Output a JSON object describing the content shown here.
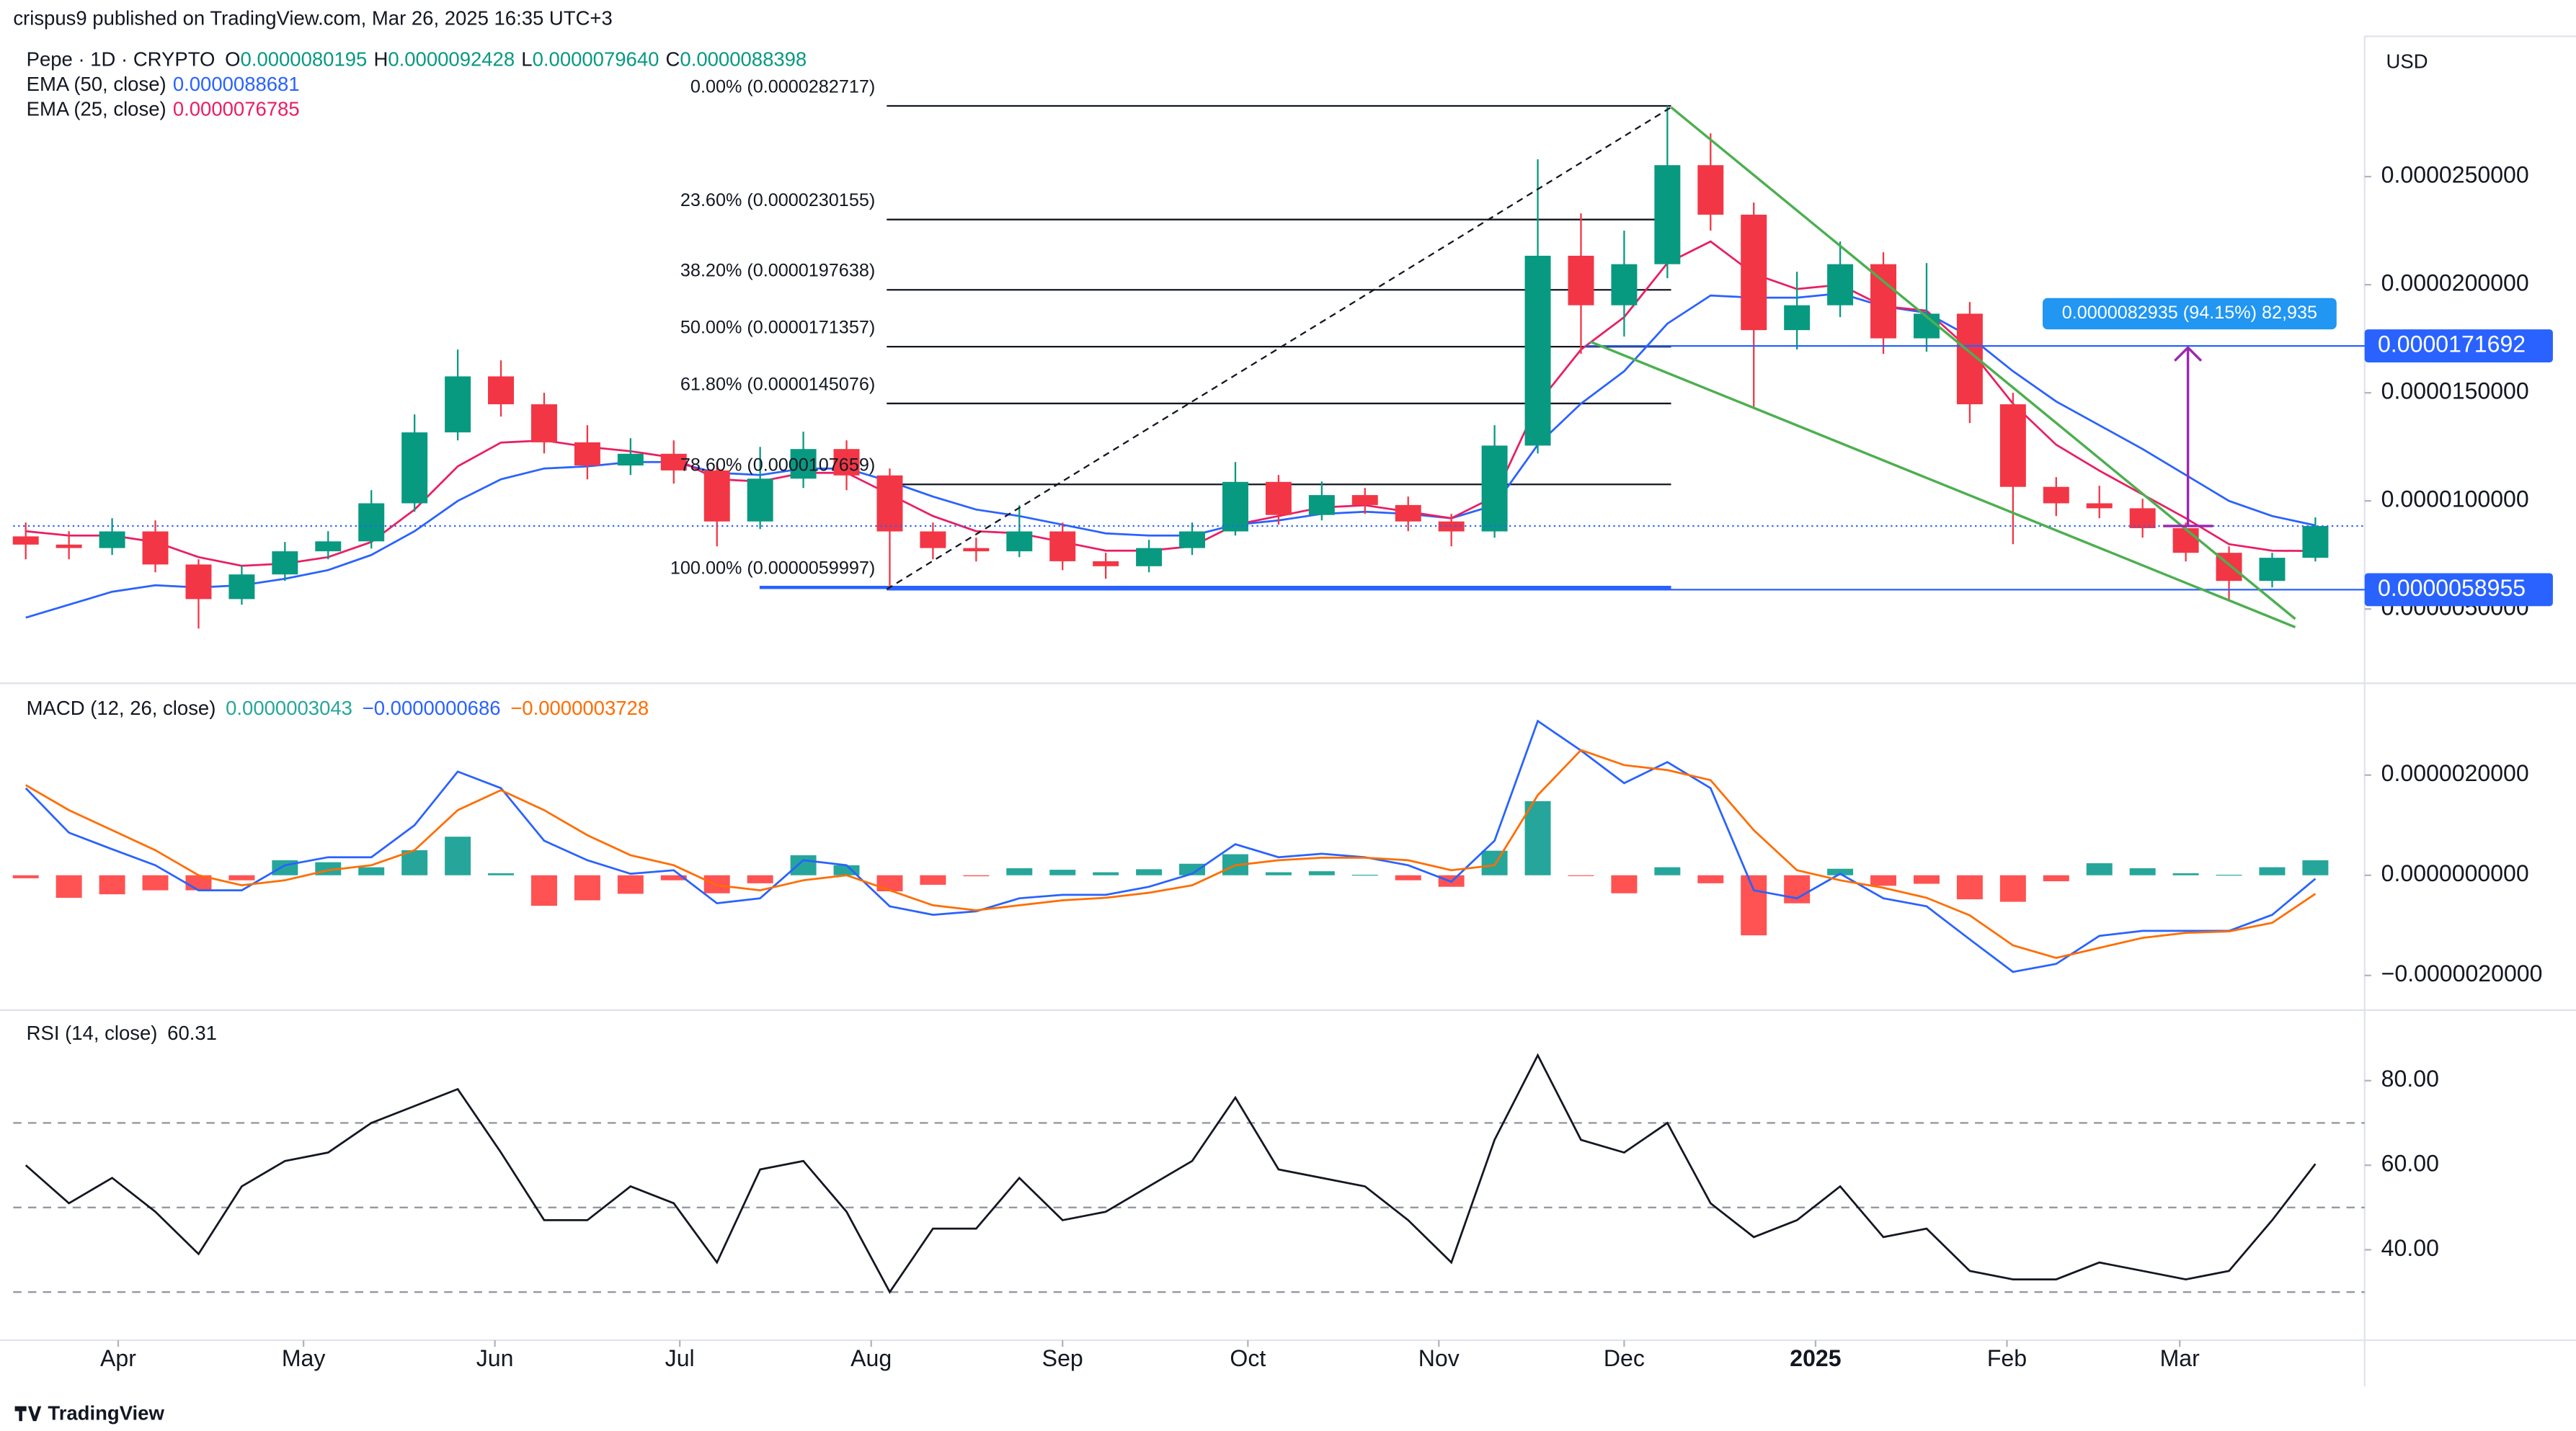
{
  "header": {
    "published": "crispus9 published on TradingView.com, Mar 26, 2025 16:35 UTC+3",
    "symbol": "Pepe · 1D · CRYPTO",
    "ohlc": [
      {
        "label": "O",
        "value": "0.0000080195"
      },
      {
        "label": "H",
        "value": "0.0000092428"
      },
      {
        "label": "L",
        "value": "0.0000079640"
      },
      {
        "label": "C",
        "value": "0.0000088398"
      }
    ],
    "currency": "USD",
    "brand": "TradingView"
  },
  "chart_data": [
    {
      "type": "candlestick",
      "up_color": "#089981",
      "down_color": "#f23645",
      "categories": [
        null,
        null,
        null,
        null,
        null,
        null,
        null,
        null,
        null,
        null,
        null,
        null,
        null,
        null,
        null,
        null,
        null,
        null,
        null,
        null,
        null,
        null,
        null,
        null,
        null,
        null,
        null,
        null,
        null,
        null,
        null,
        null,
        null,
        null,
        null,
        null,
        null,
        null,
        null,
        null,
        null,
        null,
        null,
        null,
        null,
        null,
        null,
        null,
        null,
        null,
        null,
        null,
        null,
        null
      ],
      "open": [
        8.36e-06,
        7.98e-06,
        7.82e-06,
        8.59e-06,
        7.06e-06,
        5.46e-06,
        6.6e-06,
        7.67e-06,
        8.13e-06,
        9.89e-06,
        1.317e-05,
        1.576e-05,
        1.447e-05,
        1.271e-05,
        1.164e-05,
        1.218e-05,
        1.141e-05,
        9.05e-06,
        1.103e-05,
        1.24e-05,
        1.118e-05,
        8.59e-06,
        7.82e-06,
        7.67e-06,
        8.59e-06,
        7.21e-06,
        6.98e-06,
        7.82e-06,
        8.59e-06,
        1.088e-05,
        9.35e-06,
        1.027e-05,
        9.81e-06,
        9.05e-06,
        8.59e-06,
        1.256e-05,
        2.134e-05,
        1.905e-05,
        2.095e-05,
        2.553e-05,
        2.324e-05,
        1.79e-05,
        1.905e-05,
        2.095e-05,
        1.752e-05,
        1.866e-05,
        1.447e-05,
        1.065e-05,
        9.89e-06,
        9.66e-06,
        8.74e-06,
        7.6e-06,
        6.3e-06,
        7.37e-06
      ],
      "high": [
        9e-06,
        8.6e-06,
        9.2e-06,
        9.1e-06,
        7.3e-06,
        7e-06,
        8.1e-06,
        8.6e-06,
        1.05e-05,
        1.4e-05,
        1.7e-05,
        1.65e-05,
        1.5e-05,
        1.35e-05,
        1.29e-05,
        1.28e-05,
        1.18e-05,
        1.25e-05,
        1.32e-05,
        1.28e-05,
        1.15e-05,
        9e-06,
        8.3e-06,
        9.8e-06,
        9e-06,
        7.6e-06,
        8.2e-06,
        9e-06,
        1.18e-05,
        1.12e-05,
        1.09e-05,
        1.06e-05,
        1.02e-05,
        9.4e-06,
        1.35e-05,
        2.58e-05,
        2.33e-05,
        2.25e-05,
        2.827e-05,
        2.7e-05,
        2.38e-05,
        2.06e-05,
        2.2e-05,
        2.15e-05,
        2.1e-05,
        1.92e-05,
        1.5e-05,
        1.11e-05,
        1.07e-05,
        1.01e-05,
        9e-06,
        7.9e-06,
        7.6e-06,
        9.24e-06
      ],
      "low": [
        7.3e-06,
        7.3e-06,
        7.5e-06,
        6.7e-06,
        4.1e-06,
        5.2e-06,
        6.3e-06,
        7.3e-06,
        7.8e-06,
        9.5e-06,
        1.28e-05,
        1.39e-05,
        1.22e-05,
        1.1e-05,
        1.12e-05,
        1.08e-05,
        7.9e-06,
        8.7e-06,
        1.06e-05,
        1.05e-05,
        6e-06,
        7.3e-06,
        7.2e-06,
        7.4e-06,
        6.8e-06,
        6.4e-06,
        6.7e-06,
        7.5e-06,
        8.4e-06,
        8.9e-06,
        9.1e-06,
        9.4e-06,
        8.6e-06,
        7.9e-06,
        8.3e-06,
        1.22e-05,
        1.68e-05,
        1.76e-05,
        2.03e-05,
        2.25e-05,
        1.43e-05,
        1.7e-05,
        1.85e-05,
        1.68e-05,
        1.69e-05,
        1.36e-05,
        8e-06,
        9.3e-06,
        9.2e-06,
        8.3e-06,
        7.2e-06,
        5.4e-06,
        6e-06,
        7.2e-06
      ],
      "close": [
        7.98e-06,
        7.82e-06,
        8.59e-06,
        7.06e-06,
        5.46e-06,
        6.6e-06,
        7.67e-06,
        8.13e-06,
        9.89e-06,
        1.317e-05,
        1.576e-05,
        1.447e-05,
        1.271e-05,
        1.164e-05,
        1.218e-05,
        1.141e-05,
        9.05e-06,
        1.103e-05,
        1.24e-05,
        1.118e-05,
        8.59e-06,
        7.82e-06,
        7.67e-06,
        8.59e-06,
        7.21e-06,
        6.98e-06,
        7.82e-06,
        8.59e-06,
        1.088e-05,
        9.35e-06,
        1.027e-05,
        9.81e-06,
        9.05e-06,
        8.59e-06,
        1.256e-05,
        2.134e-05,
        1.905e-05,
        2.095e-05,
        2.553e-05,
        2.324e-05,
        1.79e-05,
        1.905e-05,
        2.095e-05,
        1.752e-05,
        1.866e-05,
        1.447e-05,
        1.065e-05,
        9.89e-06,
        9.66e-06,
        8.74e-06,
        7.6e-06,
        6.3e-06,
        7.37e-06,
        8.84e-06
      ],
      "series": [
        {
          "name": "EMA (50, close)",
          "legend_value": "0.0000088681",
          "color": "#2962ff",
          "values": [
            4.6e-06,
            5.2e-06,
            5.8e-06,
            6.1e-06,
            6e-06,
            6.1e-06,
            6.4e-06,
            6.8e-06,
            7.5e-06,
            8.6e-06,
            1e-05,
            1.1e-05,
            1.15e-05,
            1.16e-05,
            1.18e-05,
            1.18e-05,
            1.13e-05,
            1.12e-05,
            1.15e-05,
            1.15e-05,
            1.09e-05,
            1.02e-05,
            9.6e-06,
            9.3e-06,
            8.9e-06,
            8.5e-06,
            8.4e-06,
            8.4e-06,
            8.9e-06,
            9.1e-06,
            9.4e-06,
            9.5e-06,
            9.4e-06,
            9.2e-06,
            9.8e-06,
            1.26e-05,
            1.45e-05,
            1.6e-05,
            1.82e-05,
            1.95e-05,
            1.94e-05,
            1.94e-05,
            1.96e-05,
            1.9e-05,
            1.87e-05,
            1.76e-05,
            1.6e-05,
            1.46e-05,
            1.35e-05,
            1.24e-05,
            1.12e-05,
            1e-05,
            9.3e-06,
            8.87e-06
          ]
        },
        {
          "name": "EMA (25, close)",
          "legend_value": "0.0000076785",
          "color": "#e91e63",
          "values": [
            8.6e-06,
            8.4e-06,
            8.4e-06,
            8.1e-06,
            7.4e-06,
            7e-06,
            7.1e-06,
            7.4e-06,
            8.1e-06,
            9.6e-06,
            1.16e-05,
            1.27e-05,
            1.28e-05,
            1.25e-05,
            1.23e-05,
            1.2e-05,
            1.1e-05,
            1.09e-05,
            1.13e-05,
            1.13e-05,
            1.03e-05,
            9.3e-06,
            8.6e-06,
            8.5e-06,
            8.1e-06,
            7.7e-06,
            7.7e-06,
            7.9e-06,
            8.9e-06,
            9.3e-06,
            9.7e-06,
            9.8e-06,
            9.5e-06,
            9.2e-06,
            1.02e-05,
            1.45e-05,
            1.7e-05,
            1.85e-05,
            2.1e-05,
            2.2e-05,
            2.05e-05,
            1.98e-05,
            2e-05,
            1.9e-05,
            1.88e-05,
            1.7e-05,
            1.45e-05,
            1.26e-05,
            1.14e-05,
            1.03e-05,
            9.2e-06,
            8e-06,
            7.7e-06,
            7.68e-06
          ]
        }
      ],
      "xlim": [
        -0.29,
        54.14
      ],
      "xticks": [
        {
          "value": 2.14,
          "label": "Apr"
        },
        {
          "value": 6.43,
          "label": "May"
        },
        {
          "value": 10.86,
          "label": "Jun"
        },
        {
          "value": 15.14,
          "label": "Jul"
        },
        {
          "value": 19.57,
          "label": "Aug"
        },
        {
          "value": 24.0,
          "label": "Sep"
        },
        {
          "value": 28.29,
          "label": "Oct"
        },
        {
          "value": 32.71,
          "label": "Nov"
        },
        {
          "value": 37.0,
          "label": "Dec"
        },
        {
          "value": 41.43,
          "label": "2025"
        },
        {
          "value": 45.86,
          "label": "Feb"
        },
        {
          "value": 49.86,
          "label": "Mar"
        }
      ],
      "ylim": [
        1.64e-06,
        3.149e-05
      ],
      "yticks": [
        {
          "value": 5e-06,
          "label": "0.0000050000"
        },
        {
          "value": 1e-05,
          "label": "0.0000100000"
        },
        {
          "value": 1.5e-05,
          "label": "0.0000150000"
        },
        {
          "value": 2e-05,
          "label": "0.0000200000"
        },
        {
          "value": 2.5e-05,
          "label": "0.0000250000"
        }
      ],
      "fib_levels": [
        {
          "label": "0.00% (0.0000282717)",
          "value": 2.82717e-05
        },
        {
          "label": "23.60% (0.0000230155)",
          "value": 2.30155e-05
        },
        {
          "label": "38.20% (0.0000197638)",
          "value": 1.97638e-05
        },
        {
          "label": "50.00% (0.0000171357)",
          "value": 1.71357e-05
        },
        {
          "label": "61.80% (0.0000145076)",
          "value": 1.45076e-05
        },
        {
          "label": "78.60% (0.0000107659)",
          "value": 1.07659e-05
        },
        {
          "label": "100.00% (0.0000059997)",
          "value": 5.9997e-06
        }
      ],
      "price_lines": [
        {
          "value": 1.71692e-05,
          "label": "0.0000171692"
        },
        {
          "value": 5.8955e-06,
          "label": "0.0000058955"
        }
      ],
      "measure": "0.0000082935 (94.15%) 82,935"
    },
    {
      "type": "macd",
      "title": "MACD (12, 26, close)",
      "legend_values": [
        "0.0000003043",
        "−0.0000000686",
        "−0.0000003728"
      ],
      "histogram": {
        "up_color": "#26a69a",
        "down_color": "#ff5252",
        "values": [
          -6e-08,
          -4.5e-07,
          -3.8e-07,
          -3e-07,
          -3e-07,
          -1e-07,
          3e-07,
          2.6e-07,
          1.6e-07,
          5e-07,
          7.7e-07,
          4e-08,
          -6.1e-07,
          -5e-07,
          -3.7e-07,
          -1e-07,
          -3.6e-07,
          -1.6e-07,
          4e-07,
          2e-07,
          -3.2e-07,
          -1.9e-07,
          -2e-08,
          1.4e-07,
          1.1e-07,
          6e-08,
          1.2e-07,
          2.3e-07,
          4.2e-07,
          6e-08,
          8e-08,
          1e-08,
          -1e-07,
          -2.3e-07,
          4.9e-07,
          1.48e-06,
          -1e-08,
          -3.6e-07,
          1.6e-07,
          -1.6e-07,
          -1.2e-06,
          -5.6e-07,
          1.3e-07,
          -2.1e-07,
          -1.7e-07,
          -4.8e-07,
          -5.3e-07,
          -1.2e-07,
          2.4e-07,
          1.4e-07,
          4e-08,
          1e-08,
          1.6e-07,
          3e-07
        ]
      },
      "macd_line": {
        "color": "#2962ff",
        "values": [
          1.74e-06,
          8.5e-07,
          5.2e-07,
          2e-07,
          -3e-07,
          -3e-07,
          2e-07,
          3.6e-07,
          3.6e-07,
          1e-06,
          2.07e-06,
          1.74e-06,
          6.9e-07,
          3e-07,
          3e-08,
          1e-07,
          -5.6e-07,
          -4.6e-07,
          3e-07,
          2e-07,
          -6.2e-07,
          -7.9e-07,
          -7.2e-07,
          -4.6e-07,
          -3.9e-07,
          -3.9e-07,
          -2.3e-07,
          3e-08,
          6.2e-07,
          3.6e-07,
          4.3e-07,
          3.6e-07,
          2e-07,
          -1.3e-07,
          6.9e-07,
          3.08e-06,
          2.49e-06,
          1.84e-06,
          2.26e-06,
          1.74e-06,
          -3e-07,
          -4.6e-07,
          3e-08,
          -4.6e-07,
          -6.2e-07,
          -1.28e-06,
          -1.93e-06,
          -1.77e-06,
          -1.21e-06,
          -1.11e-06,
          -1.11e-06,
          -1.11e-06,
          -7.9e-07,
          -7e-08
        ]
      },
      "signal_line": {
        "color": "#ff6d00",
        "values": [
          1.8e-06,
          1.3e-06,
          9e-07,
          5e-07,
          0.0,
          -2e-07,
          -1e-07,
          1e-07,
          2e-07,
          5e-07,
          1.3e-06,
          1.7e-06,
          1.3e-06,
          8e-07,
          4e-07,
          2e-07,
          -2e-07,
          -3e-07,
          -1e-07,
          0.0,
          -3e-07,
          -6e-07,
          -7e-07,
          -6e-07,
          -5e-07,
          -4.5e-07,
          -3.5e-07,
          -2e-07,
          2e-07,
          3e-07,
          3.5e-07,
          3.5e-07,
          3e-07,
          1e-07,
          2e-07,
          1.6e-06,
          2.5e-06,
          2.2e-06,
          2.1e-06,
          1.9e-06,
          9e-07,
          1e-07,
          -1e-07,
          -2.5e-07,
          -4.5e-07,
          -8e-07,
          -1.4e-06,
          -1.65e-06,
          -1.45e-06,
          -1.25e-06,
          -1.15e-06,
          -1.12e-06,
          -9.5e-07,
          -3.7e-07
        ]
      },
      "ylim": [
        -2.66e-06,
        3.8e-06
      ],
      "yticks": [
        {
          "value": -2e-06,
          "label": "−0.0000020000"
        },
        {
          "value": 0,
          "label": "0.0000000000"
        },
        {
          "value": 2e-06,
          "label": "0.0000020000"
        }
      ]
    },
    {
      "type": "line",
      "title": "RSI (14, close)",
      "legend_value": "60.31",
      "color": "#131722",
      "values": [
        60,
        51,
        57,
        49,
        39,
        55,
        61,
        63,
        70,
        74,
        78,
        63,
        47,
        47,
        55,
        51,
        37,
        59,
        61,
        49,
        30,
        45,
        45,
        57,
        47,
        49,
        55,
        61,
        76,
        59,
        57,
        55,
        47,
        37,
        66,
        86,
        66,
        63,
        70,
        51,
        43,
        47,
        55,
        43,
        45,
        35,
        33,
        33,
        37,
        35,
        33,
        35,
        47,
        60.31
      ],
      "levels": [
        30,
        50,
        70
      ],
      "ylim": [
        19.0,
        95.9
      ],
      "yticks": [
        {
          "value": 40,
          "label": "40.00"
        },
        {
          "value": 60,
          "label": "60.00"
        },
        {
          "value": 80,
          "label": "80.00"
        }
      ]
    }
  ]
}
